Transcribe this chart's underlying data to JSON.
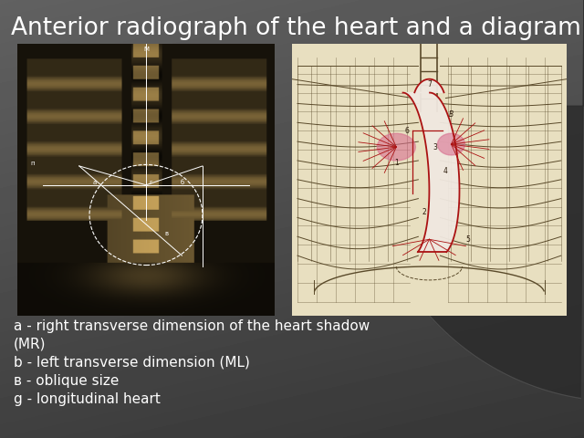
{
  "title": "Anterior radiograph of the heart and a diagram",
  "title_fontsize": 19,
  "title_color": "#ffffff",
  "bg_top_color": "#595959",
  "bg_bottom_color": "#373737",
  "curve_color": "#4a4a4a",
  "text_lines": [
    "a - right transverse dimension of the heart shadow",
    "(MR)",
    "b - left transverse dimension (ML)",
    "в - oblique size",
    "g - longitudinal heart"
  ],
  "text_fontsize": 11,
  "text_color": "#ffffff",
  "xray_bg": "#1a1505",
  "xray_overlay_color": "#ffffff",
  "diagram_bg": "#e8dfc0",
  "diagram_rib_color": "#5a4a2a",
  "diagram_heart_fill": "#e8a0a0",
  "diagram_heart_edge": "#aa1111",
  "diagram_pink_fill": "#d87090"
}
